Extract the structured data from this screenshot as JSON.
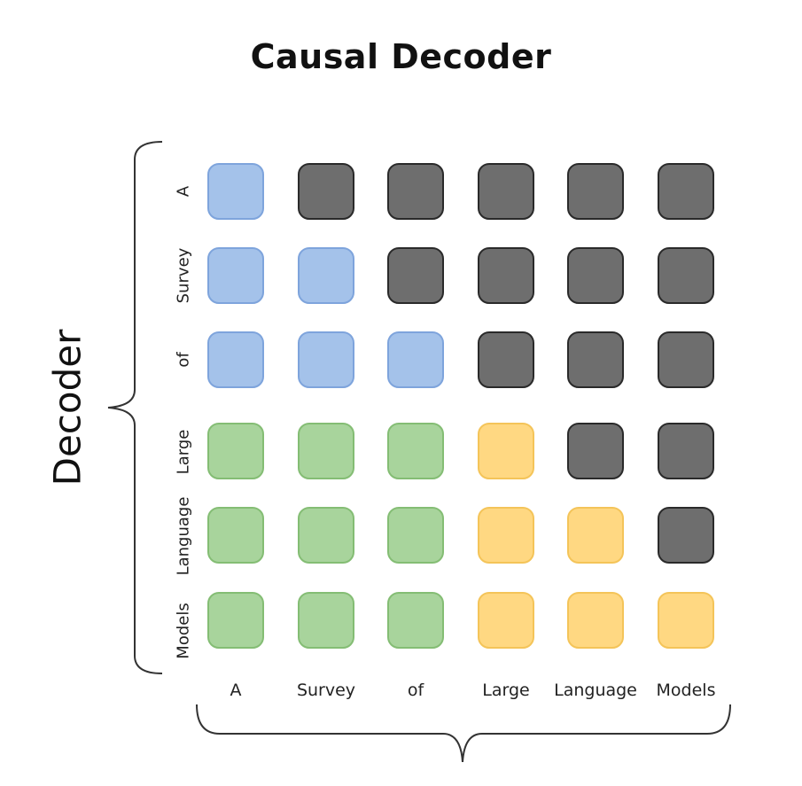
{
  "title": "Causal Decoder",
  "side_label": "Decoder",
  "row_labels": [
    "A",
    "Survey",
    "of",
    "Large",
    "Language",
    "Models"
  ],
  "col_labels": [
    "A",
    "Survey",
    "of",
    "Large",
    "Language",
    "Models"
  ],
  "colors": {
    "blue": "#a4c2ea",
    "green": "#a8d49c",
    "yellow": "#ffd882",
    "gray": "#6e6e6e"
  },
  "matrix": [
    [
      "blue",
      "gray",
      "gray",
      "gray",
      "gray",
      "gray"
    ],
    [
      "blue",
      "blue",
      "gray",
      "gray",
      "gray",
      "gray"
    ],
    [
      "blue",
      "blue",
      "blue",
      "gray",
      "gray",
      "gray"
    ],
    [
      "green",
      "green",
      "green",
      "yellow",
      "gray",
      "gray"
    ],
    [
      "green",
      "green",
      "green",
      "yellow",
      "yellow",
      "gray"
    ],
    [
      "green",
      "green",
      "green",
      "yellow",
      "yellow",
      "yellow"
    ]
  ]
}
